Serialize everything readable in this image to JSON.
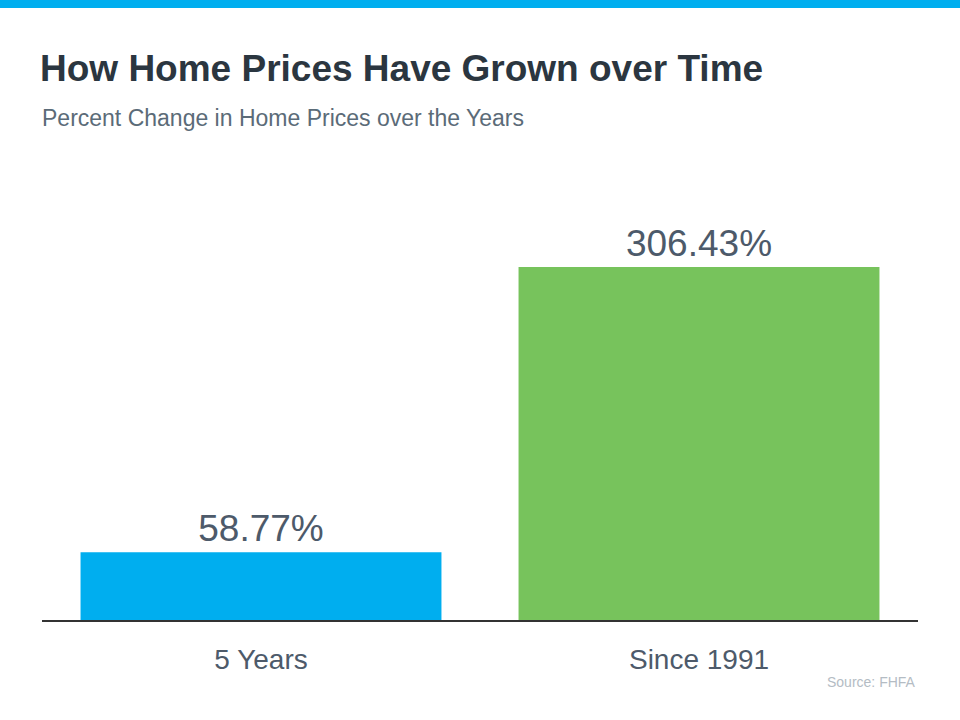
{
  "chart_data": {
    "type": "bar",
    "title": "How Home Prices Have Grown over Time",
    "subtitle": "Percent Change in Home Prices over the Years",
    "categories": [
      "5 Years",
      "Since 1991"
    ],
    "values": [
      58.77,
      306.43
    ],
    "value_labels": [
      "58.77%",
      "306.43%"
    ],
    "colors": [
      "#00aeef",
      "#77c35c"
    ],
    "ylim": [
      0,
      306.43
    ],
    "data_labels": true,
    "tick_labels": "x",
    "grid": false,
    "source": "Source: FHFA"
  }
}
